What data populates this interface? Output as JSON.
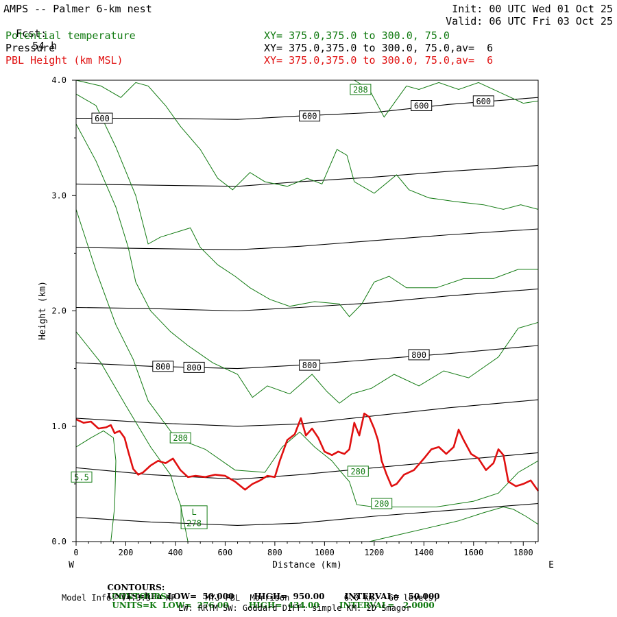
{
  "header": {
    "title": "AMPS -- Palmer 6-km nest",
    "fcst_label": "Fcst:",
    "fcst_value": "54 h",
    "init": "Init: 00 UTC Wed 01 Oct 25",
    "valid": "Valid: 06 UTC Fri 03 Oct 25",
    "fields": [
      {
        "name": "Potential temperature",
        "xy": "XY= 375.0,375.0 to 300.0, 75.0",
        "color": "#117a11"
      },
      {
        "name": "Pressure",
        "xy": "XY= 375.0,375.0 to 300.0, 75.0,av=  6",
        "color": "#000000"
      },
      {
        "name": "PBL Height (km MSL)",
        "xy": "XY= 375.0,375.0 to 300.0, 75.0,av=  6",
        "color": "#e01010"
      }
    ]
  },
  "chart_data": {
    "type": "line",
    "xlabel": "Distance (km)",
    "ylabel": "Height (km)",
    "xlim": [
      0,
      1860
    ],
    "ylim": [
      0.0,
      4.0
    ],
    "xticks": [
      0,
      200,
      400,
      600,
      800,
      1000,
      1200,
      1400,
      1600,
      1800
    ],
    "yticks": [
      0.0,
      1.0,
      2.0,
      3.0,
      4.0
    ],
    "ytick_labels": [
      "0.0",
      "1.0",
      "2.0",
      "3.0",
      "4.0"
    ],
    "left_end_label": "W",
    "right_end_label": "E",
    "pressure_isobars": [
      {
        "points": [
          [
            0,
            0.21
          ],
          [
            300,
            0.17
          ],
          [
            650,
            0.14
          ],
          [
            900,
            0.16
          ],
          [
            1200,
            0.22
          ],
          [
            1500,
            0.27
          ],
          [
            1860,
            0.33
          ]
        ]
      },
      {
        "points": [
          [
            0,
            0.64
          ],
          [
            300,
            0.58
          ],
          [
            650,
            0.54
          ],
          [
            900,
            0.58
          ],
          [
            1200,
            0.64
          ],
          [
            1500,
            0.7
          ],
          [
            1860,
            0.77
          ]
        ]
      },
      {
        "points": [
          [
            0,
            1.07
          ],
          [
            300,
            1.03
          ],
          [
            650,
            1.0
          ],
          [
            900,
            1.02
          ],
          [
            1200,
            1.09
          ],
          [
            1500,
            1.16
          ],
          [
            1860,
            1.23
          ]
        ]
      },
      {
        "points": [
          [
            0,
            1.55
          ],
          [
            300,
            1.52
          ],
          [
            650,
            1.5
          ],
          [
            900,
            1.53
          ],
          [
            1200,
            1.58
          ],
          [
            1500,
            1.63
          ],
          [
            1860,
            1.7
          ]
        ]
      },
      {
        "points": [
          [
            0,
            2.03
          ],
          [
            300,
            2.02
          ],
          [
            650,
            2.0
          ],
          [
            900,
            2.03
          ],
          [
            1200,
            2.07
          ],
          [
            1500,
            2.13
          ],
          [
            1860,
            2.19
          ]
        ]
      },
      {
        "points": [
          [
            0,
            2.55
          ],
          [
            300,
            2.54
          ],
          [
            650,
            2.53
          ],
          [
            900,
            2.56
          ],
          [
            1200,
            2.61
          ],
          [
            1500,
            2.66
          ],
          [
            1860,
            2.71
          ]
        ]
      },
      {
        "points": [
          [
            0,
            3.1
          ],
          [
            300,
            3.09
          ],
          [
            650,
            3.08
          ],
          [
            900,
            3.12
          ],
          [
            1200,
            3.16
          ],
          [
            1500,
            3.21
          ],
          [
            1860,
            3.26
          ]
        ]
      },
      {
        "points": [
          [
            0,
            3.67
          ],
          [
            300,
            3.67
          ],
          [
            650,
            3.66
          ],
          [
            900,
            3.69
          ],
          [
            1200,
            3.72
          ],
          [
            1500,
            3.79
          ],
          [
            1860,
            3.85
          ]
        ]
      }
    ],
    "pressure_labels": [
      {
        "text": "600",
        "x": 105,
        "y": 3.67
      },
      {
        "text": "600",
        "x": 940,
        "y": 3.69
      },
      {
        "text": "600",
        "x": 1390,
        "y": 3.78
      },
      {
        "text": "600",
        "x": 1640,
        "y": 3.82
      },
      {
        "text": "800",
        "x": 350,
        "y": 1.52
      },
      {
        "text": "800",
        "x": 475,
        "y": 1.51
      },
      {
        "text": "800",
        "x": 940,
        "y": 1.53
      },
      {
        "text": "800",
        "x": 1380,
        "y": 1.62
      }
    ],
    "theta_contours": [
      {
        "points": [
          [
            0,
            0.82
          ],
          [
            60,
            0.9
          ],
          [
            110,
            0.96
          ],
          [
            150,
            0.9
          ],
          [
            160,
            0.7
          ],
          [
            155,
            0.3
          ],
          [
            140,
            0.0
          ]
        ]
      },
      {
        "points": [
          [
            0,
            1.82
          ],
          [
            100,
            1.55
          ],
          [
            200,
            1.18
          ],
          [
            300,
            0.82
          ],
          [
            380,
            0.58
          ],
          [
            400,
            0.44
          ],
          [
            420,
            0.32
          ],
          [
            450,
            0.0
          ]
        ]
      },
      {
        "points": [
          [
            0,
            2.88
          ],
          [
            80,
            2.35
          ],
          [
            160,
            1.88
          ],
          [
            230,
            1.58
          ],
          [
            290,
            1.22
          ],
          [
            400,
            0.9
          ],
          [
            520,
            0.8
          ],
          [
            640,
            0.62
          ],
          [
            760,
            0.6
          ],
          [
            830,
            0.82
          ],
          [
            900,
            0.95
          ],
          [
            960,
            0.82
          ],
          [
            1030,
            0.7
          ],
          [
            1060,
            0.62
          ],
          [
            1100,
            0.52
          ],
          [
            1130,
            0.32
          ],
          [
            1200,
            0.3
          ],
          [
            1300,
            0.3
          ],
          [
            1450,
            0.3
          ],
          [
            1600,
            0.35
          ],
          [
            1700,
            0.42
          ],
          [
            1780,
            0.6
          ],
          [
            1860,
            0.7
          ]
        ]
      },
      {
        "points": [
          [
            0,
            3.62
          ],
          [
            80,
            3.3
          ],
          [
            160,
            2.9
          ],
          [
            210,
            2.55
          ],
          [
            240,
            2.25
          ],
          [
            300,
            2.0
          ],
          [
            380,
            1.82
          ],
          [
            450,
            1.7
          ],
          [
            550,
            1.55
          ],
          [
            650,
            1.45
          ],
          [
            710,
            1.25
          ],
          [
            770,
            1.35
          ],
          [
            860,
            1.28
          ],
          [
            950,
            1.45
          ],
          [
            1010,
            1.3
          ],
          [
            1060,
            1.2
          ],
          [
            1110,
            1.28
          ],
          [
            1190,
            1.33
          ],
          [
            1280,
            1.45
          ],
          [
            1380,
            1.35
          ],
          [
            1480,
            1.48
          ],
          [
            1580,
            1.42
          ],
          [
            1700,
            1.6
          ],
          [
            1780,
            1.85
          ],
          [
            1860,
            1.9
          ]
        ]
      },
      {
        "points": [
          [
            0,
            3.88
          ],
          [
            80,
            3.78
          ],
          [
            160,
            3.42
          ],
          [
            240,
            3.0
          ],
          [
            290,
            2.58
          ],
          [
            340,
            2.64
          ],
          [
            400,
            2.68
          ],
          [
            460,
            2.72
          ],
          [
            500,
            2.55
          ],
          [
            570,
            2.4
          ],
          [
            640,
            2.3
          ],
          [
            700,
            2.2
          ],
          [
            780,
            2.1
          ],
          [
            860,
            2.04
          ],
          [
            960,
            2.08
          ],
          [
            1060,
            2.06
          ],
          [
            1100,
            1.95
          ],
          [
            1150,
            2.06
          ],
          [
            1200,
            2.25
          ],
          [
            1260,
            2.3
          ],
          [
            1330,
            2.2
          ],
          [
            1450,
            2.2
          ],
          [
            1560,
            2.28
          ],
          [
            1680,
            2.28
          ],
          [
            1780,
            2.36
          ],
          [
            1860,
            2.36
          ]
        ]
      },
      {
        "points": [
          [
            0,
            4.0
          ],
          [
            100,
            3.95
          ],
          [
            180,
            3.85
          ],
          [
            240,
            3.98
          ],
          [
            290,
            3.95
          ],
          [
            360,
            3.78
          ],
          [
            420,
            3.6
          ],
          [
            500,
            3.4
          ],
          [
            570,
            3.15
          ],
          [
            630,
            3.05
          ],
          [
            700,
            3.2
          ],
          [
            760,
            3.12
          ],
          [
            850,
            3.08
          ],
          [
            930,
            3.15
          ],
          [
            990,
            3.1
          ],
          [
            1050,
            3.4
          ],
          [
            1090,
            3.35
          ],
          [
            1120,
            3.12
          ],
          [
            1200,
            3.02
          ],
          [
            1290,
            3.18
          ],
          [
            1340,
            3.05
          ],
          [
            1420,
            2.98
          ],
          [
            1520,
            2.95
          ],
          [
            1640,
            2.92
          ],
          [
            1720,
            2.88
          ],
          [
            1790,
            2.92
          ],
          [
            1860,
            2.88
          ]
        ]
      },
      {
        "points": [
          [
            1120,
            4.0
          ],
          [
            1150,
            3.96
          ],
          [
            1180,
            3.92
          ],
          [
            1240,
            3.68
          ],
          [
            1280,
            3.8
          ],
          [
            1330,
            3.95
          ],
          [
            1380,
            3.92
          ],
          [
            1460,
            3.98
          ],
          [
            1540,
            3.92
          ],
          [
            1620,
            3.98
          ],
          [
            1720,
            3.88
          ],
          [
            1800,
            3.8
          ],
          [
            1860,
            3.82
          ]
        ]
      },
      {
        "points": [
          [
            1180,
            0.0
          ],
          [
            1300,
            0.06
          ],
          [
            1420,
            0.12
          ],
          [
            1540,
            0.18
          ],
          [
            1640,
            0.25
          ],
          [
            1720,
            0.3
          ],
          [
            1760,
            0.28
          ],
          [
            1810,
            0.22
          ],
          [
            1860,
            0.15
          ]
        ]
      }
    ],
    "theta_labels": [
      {
        "text": "288",
        "x": 1145,
        "y": 3.92
      },
      {
        "text": "280",
        "x": 420,
        "y": 0.9
      },
      {
        "text": "280",
        "x": 1135,
        "y": 0.61
      },
      {
        "text": "280",
        "x": 1230,
        "y": 0.33
      },
      {
        "text": "5.5",
        "x": 22,
        "y": 0.56
      },
      {
        "text": "L",
        "x": 475,
        "y": 0.26
      },
      {
        "text": "278",
        "x": 475,
        "y": 0.16
      }
    ],
    "pbl_height": {
      "points": [
        [
          0,
          1.06
        ],
        [
          30,
          1.03
        ],
        [
          60,
          1.04
        ],
        [
          90,
          0.98
        ],
        [
          120,
          0.99
        ],
        [
          140,
          1.01
        ],
        [
          155,
          0.94
        ],
        [
          175,
          0.96
        ],
        [
          195,
          0.9
        ],
        [
          210,
          0.78
        ],
        [
          230,
          0.63
        ],
        [
          250,
          0.58
        ],
        [
          270,
          0.6
        ],
        [
          300,
          0.66
        ],
        [
          330,
          0.7
        ],
        [
          360,
          0.68
        ],
        [
          390,
          0.72
        ],
        [
          420,
          0.62
        ],
        [
          450,
          0.56
        ],
        [
          480,
          0.57
        ],
        [
          520,
          0.56
        ],
        [
          560,
          0.58
        ],
        [
          600,
          0.57
        ],
        [
          640,
          0.52
        ],
        [
          680,
          0.45
        ],
        [
          710,
          0.5
        ],
        [
          740,
          0.53
        ],
        [
          770,
          0.57
        ],
        [
          800,
          0.56
        ],
        [
          820,
          0.7
        ],
        [
          850,
          0.88
        ],
        [
          880,
          0.93
        ],
        [
          905,
          1.07
        ],
        [
          925,
          0.92
        ],
        [
          950,
          0.98
        ],
        [
          975,
          0.9
        ],
        [
          1000,
          0.78
        ],
        [
          1030,
          0.75
        ],
        [
          1055,
          0.78
        ],
        [
          1080,
          0.76
        ],
        [
          1100,
          0.8
        ],
        [
          1120,
          1.03
        ],
        [
          1140,
          0.92
        ],
        [
          1160,
          1.11
        ],
        [
          1180,
          1.08
        ],
        [
          1200,
          0.98
        ],
        [
          1215,
          0.88
        ],
        [
          1230,
          0.7
        ],
        [
          1250,
          0.58
        ],
        [
          1270,
          0.48
        ],
        [
          1290,
          0.5
        ],
        [
          1320,
          0.58
        ],
        [
          1360,
          0.62
        ],
        [
          1400,
          0.72
        ],
        [
          1430,
          0.8
        ],
        [
          1460,
          0.82
        ],
        [
          1490,
          0.76
        ],
        [
          1520,
          0.82
        ],
        [
          1540,
          0.97
        ],
        [
          1560,
          0.88
        ],
        [
          1590,
          0.76
        ],
        [
          1620,
          0.72
        ],
        [
          1650,
          0.62
        ],
        [
          1680,
          0.68
        ],
        [
          1700,
          0.8
        ],
        [
          1720,
          0.75
        ],
        [
          1740,
          0.52
        ],
        [
          1770,
          0.48
        ],
        [
          1800,
          0.5
        ],
        [
          1830,
          0.53
        ],
        [
          1860,
          0.44
        ]
      ]
    }
  },
  "footer": {
    "line1_label": "CONTOURS:",
    "line1": "UNITS=hPa  LOW=  50.000       HIGH=  950.00       INTERVAL=   50.000",
    "line2_label": "CONTOURS:",
    "line2": "UNITS=K  LOW=  276.00       HIGH=  434.00       INTERVAL=   2.0000",
    "line3": "Model Info: V4.3.3   KF      MYJ PBL  Morrison           6.0 km,  60 levels,",
    "line4": "LW: RRTM SW: Goddard DIFF: simple KM: 2D Smagor"
  },
  "colors": {
    "theta": "#117a11",
    "pressure": "#000000",
    "pbl": "#e01010",
    "axes": "#000000"
  }
}
